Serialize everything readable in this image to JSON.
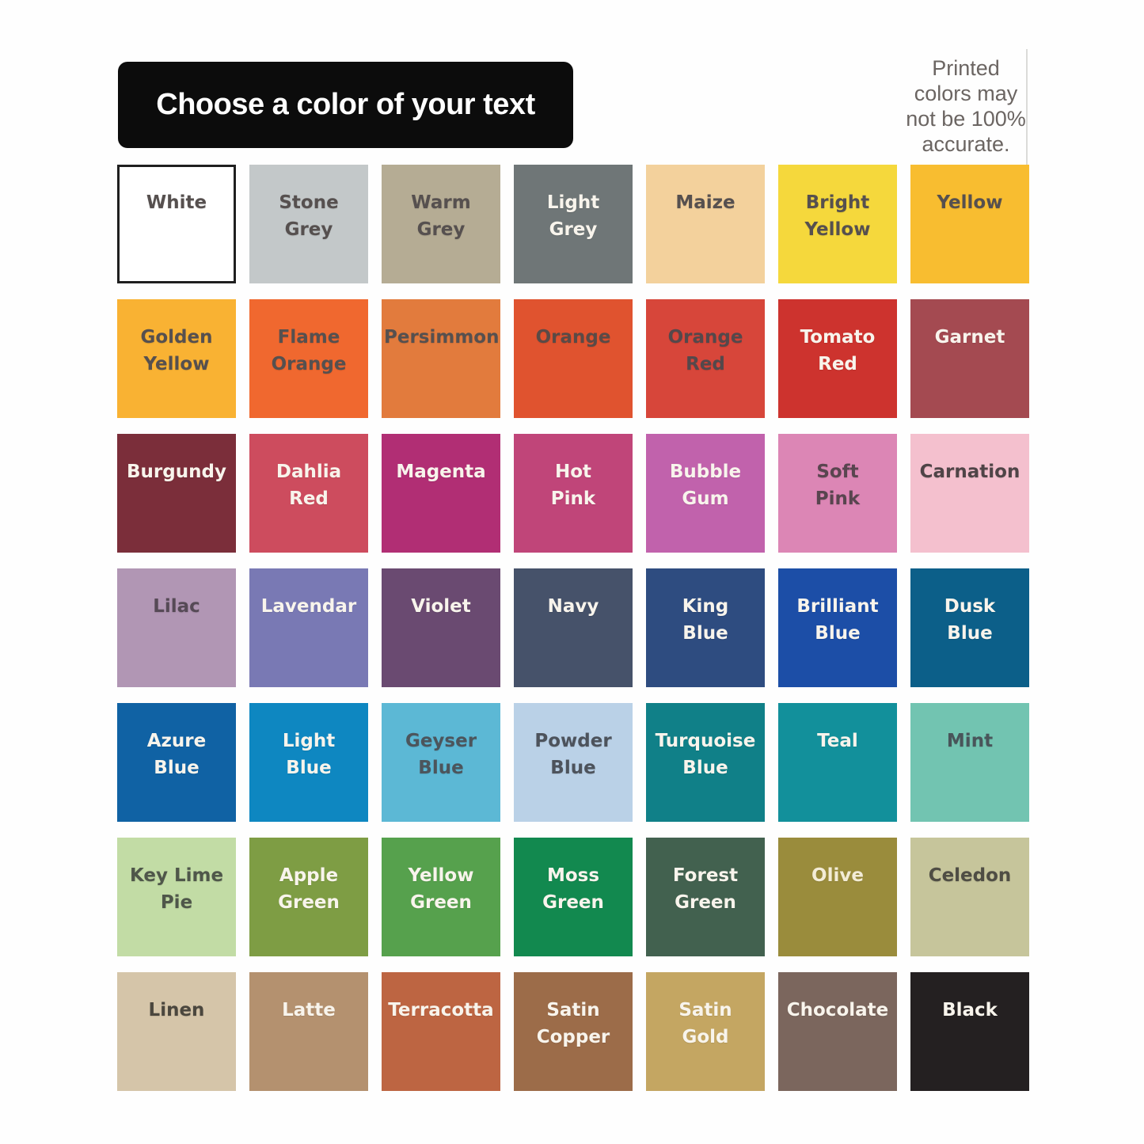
{
  "page_bg": "#fefefe",
  "title": {
    "label": "Choose a color of your text",
    "bg": "#0c0c0c",
    "text_color": "#ffffff"
  },
  "note": {
    "text": "Printed\ncolors may\nnot be 100%\naccurate.",
    "text_color": "#6b6562"
  },
  "palette": {
    "rows": 7,
    "cols": 7,
    "dark_label_color": "#56504f",
    "light_label_color": "#f8f4ec",
    "swatches": [
      {
        "name": "White",
        "label": "White",
        "hex": "#ffffff",
        "label_color": "#56504f",
        "border_color": "#1f1f1f"
      },
      {
        "name": "Stone Grey",
        "label": "Stone\nGrey",
        "hex": "#c3c8c9",
        "label_color": "#56504f"
      },
      {
        "name": "Warm Grey",
        "label": "Warm\nGrey",
        "hex": "#b5ac94",
        "label_color": "#56504f"
      },
      {
        "name": "Light Grey",
        "label": "Light\nGrey",
        "hex": "#6f7677",
        "label_color": "#f8f4ec"
      },
      {
        "name": "Maize",
        "label": "Maize",
        "hex": "#f3d19c",
        "label_color": "#56504f"
      },
      {
        "name": "Bright Yellow",
        "label": "Bright\nYellow",
        "hex": "#f5d83c",
        "label_color": "#56504f"
      },
      {
        "name": "Yellow",
        "label": "Yellow",
        "hex": "#f8bd30",
        "label_color": "#56504f"
      },
      {
        "name": "Golden Yellow",
        "label": "Golden\nYellow",
        "hex": "#f9b233",
        "label_color": "#56504f"
      },
      {
        "name": "Flame Orange",
        "label": "Flame\nOrange",
        "hex": "#f0682f",
        "label_color": "#56504f"
      },
      {
        "name": "Persimmon",
        "label": "Persimmon",
        "hex": "#e27b3d",
        "label_color": "#56504f"
      },
      {
        "name": "Orange",
        "label": "Orange",
        "hex": "#e0532f",
        "label_color": "#5a4a46"
      },
      {
        "name": "Orange Red",
        "label": "Orange\nRed",
        "hex": "#d7463a",
        "label_color": "#54484b"
      },
      {
        "name": "Tomato Red",
        "label": "Tomato\nRed",
        "hex": "#cd332e",
        "label_color": "#f8f4ec"
      },
      {
        "name": "Garnet",
        "label": "Garnet",
        "hex": "#a44a51",
        "label_color": "#f8f4ec"
      },
      {
        "name": "Burgundy",
        "label": "Burgundy",
        "hex": "#7b2e3a",
        "label_color": "#f8f4ec"
      },
      {
        "name": "Dahlia Red",
        "label": "Dahlia\nRed",
        "hex": "#cd4c5e",
        "label_color": "#f8f4ec"
      },
      {
        "name": "Magenta",
        "label": "Magenta",
        "hex": "#b12e74",
        "label_color": "#f8f4ec"
      },
      {
        "name": "Hot Pink",
        "label": "Hot\nPink",
        "hex": "#c04579",
        "label_color": "#f8f4ec"
      },
      {
        "name": "Bubble Gum",
        "label": "Bubble\nGum",
        "hex": "#c162ac",
        "label_color": "#f8f4ec"
      },
      {
        "name": "Soft Pink",
        "label": "Soft\nPink",
        "hex": "#dc86b5",
        "label_color": "#59454f"
      },
      {
        "name": "Carnation",
        "label": "Carnation",
        "hex": "#f4c0ce",
        "label_color": "#4f4447"
      },
      {
        "name": "Lilac",
        "label": "Lilac",
        "hex": "#b196b4",
        "label_color": "#564a56"
      },
      {
        "name": "Lavendar",
        "label": "Lavendar",
        "hex": "#7979b4",
        "label_color": "#f8f4ec"
      },
      {
        "name": "Violet",
        "label": "Violet",
        "hex": "#6a4a71",
        "label_color": "#f8f4ec"
      },
      {
        "name": "Navy",
        "label": "Navy",
        "hex": "#46526a",
        "label_color": "#f8f4ec"
      },
      {
        "name": "King Blue",
        "label": "King\nBlue",
        "hex": "#2e4c80",
        "label_color": "#f8f4ec"
      },
      {
        "name": "Brilliant Blue",
        "label": "Brilliant\nBlue",
        "hex": "#1c4ea7",
        "label_color": "#f8f4ec"
      },
      {
        "name": "Dusk Blue",
        "label": "Dusk\nBlue",
        "hex": "#0c5f89",
        "label_color": "#f8f4ec"
      },
      {
        "name": "Azure Blue",
        "label": "Azure\nBlue",
        "hex": "#1062a4",
        "label_color": "#f8f4ec"
      },
      {
        "name": "Light Blue",
        "label": "Light\nBlue",
        "hex": "#0e87c1",
        "label_color": "#f8f4ec"
      },
      {
        "name": "Geyser Blue",
        "label": "Geyser\nBlue",
        "hex": "#5cb8d5",
        "label_color": "#4c555c"
      },
      {
        "name": "Powder Blue",
        "label": "Powder\nBlue",
        "hex": "#bad1e7",
        "label_color": "#4d535c"
      },
      {
        "name": "Turquoise Blue",
        "label": "Turquoise\nBlue",
        "hex": "#108088",
        "label_color": "#f8f4ec"
      },
      {
        "name": "Teal",
        "label": "Teal",
        "hex": "#12909b",
        "label_color": "#f8f4ec"
      },
      {
        "name": "Mint",
        "label": "Mint",
        "hex": "#72c4b1",
        "label_color": "#49555a"
      },
      {
        "name": "Key Lime Pie",
        "label": "Key Lime\nPie",
        "hex": "#c2dca5",
        "label_color": "#4f574a"
      },
      {
        "name": "Apple Green",
        "label": "Apple\nGreen",
        "hex": "#7e9d44",
        "label_color": "#f8f4ec"
      },
      {
        "name": "Yellow Green",
        "label": "Yellow\nGreen",
        "hex": "#56a14d",
        "label_color": "#f8f4ec"
      },
      {
        "name": "Moss Green",
        "label": "Moss\nGreen",
        "hex": "#12894f",
        "label_color": "#f8f4ec"
      },
      {
        "name": "Forest Green",
        "label": "Forest\nGreen",
        "hex": "#42614f",
        "label_color": "#f8f4ec"
      },
      {
        "name": "Olive",
        "label": "Olive",
        "hex": "#9a8c3c",
        "label_color": "#f3ecd6"
      },
      {
        "name": "Celedon",
        "label": "Celedon",
        "hex": "#c6c59b",
        "label_color": "#4f4d44"
      },
      {
        "name": "Linen",
        "label": "Linen",
        "hex": "#d5c5a9",
        "label_color": "#4b473e"
      },
      {
        "name": "Latte",
        "label": "Latte",
        "hex": "#b4916f",
        "label_color": "#f8f4ec"
      },
      {
        "name": "Terracotta",
        "label": "Terracotta",
        "hex": "#bd6542",
        "label_color": "#f8f4ec"
      },
      {
        "name": "Satin Copper",
        "label": "Satin\nCopper",
        "hex": "#9c6c49",
        "label_color": "#f8f4ec"
      },
      {
        "name": "Satin Gold",
        "label": "Satin\nGold",
        "hex": "#c4a662",
        "label_color": "#f8f4ec"
      },
      {
        "name": "Chocolate",
        "label": "Chocolate",
        "hex": "#7b665d",
        "label_color": "#f8f4ec"
      },
      {
        "name": "Black",
        "label": "Black",
        "hex": "#242021",
        "label_color": "#f8f4ec"
      }
    ]
  }
}
